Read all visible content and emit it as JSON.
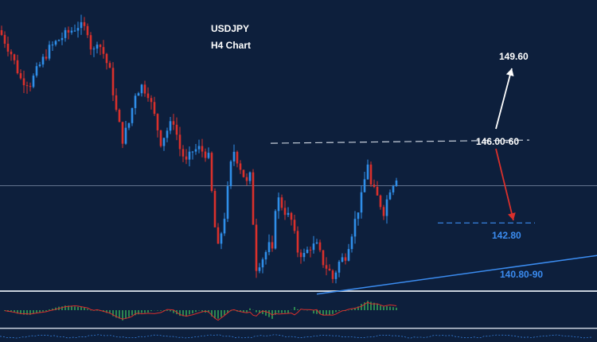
{
  "chart_data": {
    "type": "candlestick",
    "title": "USDJPY",
    "subtitle": "H4 Chart",
    "price_range": [
      139.9,
      152.4
    ],
    "bars": 152,
    "ohlc_close_path": [
      [
        0,
        150.9
      ],
      [
        3,
        150.1
      ],
      [
        6,
        149.0
      ],
      [
        9,
        148.8
      ],
      [
        12,
        149.6
      ],
      [
        15,
        150.3
      ],
      [
        18,
        150.7
      ],
      [
        21,
        151.0
      ],
      [
        24,
        151.3
      ],
      [
        27,
        151.1
      ],
      [
        28,
        150.4
      ],
      [
        29,
        150.2
      ],
      [
        30,
        150.7
      ],
      [
        32,
        150.1
      ],
      [
        34,
        149.3
      ],
      [
        36,
        147.6
      ],
      [
        38,
        146.4
      ],
      [
        40,
        147.1
      ],
      [
        42,
        148.4
      ],
      [
        44,
        148.7
      ],
      [
        46,
        148.4
      ],
      [
        48,
        147.4
      ],
      [
        50,
        146.3
      ],
      [
        52,
        146.8
      ],
      [
        54,
        147.2
      ],
      [
        56,
        146.0
      ],
      [
        58,
        145.4
      ],
      [
        60,
        145.9
      ],
      [
        62,
        146.0
      ],
      [
        64,
        145.8
      ],
      [
        65,
        145.6
      ],
      [
        67,
        142.6
      ],
      [
        68,
        141.7
      ],
      [
        70,
        143.1
      ],
      [
        72,
        145.3
      ],
      [
        73,
        145.9
      ],
      [
        75,
        145.2
      ],
      [
        77,
        144.5
      ],
      [
        78,
        144.8
      ],
      [
        80,
        140.9
      ],
      [
        82,
        141.3
      ],
      [
        84,
        141.8
      ],
      [
        85,
        141.5
      ],
      [
        86,
        143.5
      ],
      [
        87,
        143.8
      ],
      [
        89,
        143.3
      ],
      [
        91,
        142.9
      ],
      [
        93,
        141.6
      ],
      [
        95,
        141.4
      ],
      [
        97,
        141.8
      ],
      [
        99,
        141.8
      ],
      [
        101,
        141.1
      ],
      [
        103,
        140.7
      ],
      [
        104,
        140.4
      ],
      [
        106,
        141.1
      ],
      [
        108,
        141.4
      ],
      [
        110,
        142.4
      ],
      [
        112,
        143.4
      ],
      [
        113,
        143.9
      ],
      [
        115,
        145.4
      ],
      [
        116,
        144.4
      ],
      [
        118,
        143.9
      ],
      [
        119,
        143.6
      ],
      [
        120,
        143.3
      ],
      [
        122,
        144.3
      ],
      [
        124,
        144.8
      ]
    ],
    "levels": [
      {
        "label": "149.60",
        "value": 149.6,
        "color": "#ffffff"
      },
      {
        "label": "146.00-60",
        "value": 146.3,
        "color": "#ffffff"
      },
      {
        "label": "142.80",
        "value": 142.8,
        "color": "#3b8cf0"
      },
      {
        "label": "140.80-90",
        "value": 140.85,
        "color": "#3b8cf0"
      }
    ],
    "current_price": 144.4,
    "trendline": {
      "from": [
        80,
        139.6
      ],
      "to": [
        152,
        141.4
      ]
    },
    "projections": [
      {
        "direction": "up",
        "target": 149.6,
        "color": "#ffffff"
      },
      {
        "direction": "down",
        "target": 142.9,
        "color": "#d9302c"
      }
    ],
    "indicator": {
      "type": "histogram",
      "colors": {
        "positive": "#3fbf5a",
        "line": "#d9302c"
      }
    },
    "grid": false
  }
}
